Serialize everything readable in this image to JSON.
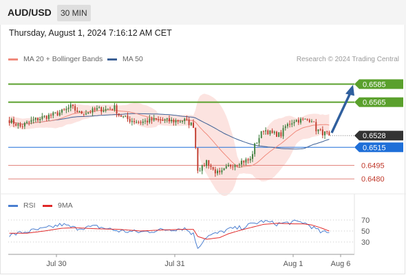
{
  "header": {
    "pair": "AUD/USD",
    "timeframe": "30 MIN"
  },
  "datetime": "Thursday, August 1, 2024 7:16:12 AM CET",
  "legend": {
    "ma20_label": "MA 20 + Bollinger Bands",
    "ma50_label": "MA 50",
    "rsi_label": "RSI",
    "rsi_ma_label": "9MA",
    "research": "Research © 2024 Trading Central"
  },
  "colors": {
    "bullish": "#3a7d3a",
    "bearish": "#c0392b",
    "ma20": "#f08a7c",
    "bollinger_fill": "#fbdedb",
    "ma50": "#3b5f95",
    "resistance": "#5aa02c",
    "support": "#e2847d",
    "pivot": "#1f6fd8",
    "arrow": "#2f5f9e",
    "current": "#333333",
    "rsi": "#4a7ed0",
    "rsi_ma": "#e02828"
  },
  "chart_data": [
    {
      "type": "candlestick",
      "ylim": [
        0.6468,
        0.6602
      ],
      "x_ticks": [
        "Jul 30",
        "Jul 31",
        "Aug 1",
        "Aug 6"
      ],
      "ma_series": [
        {
          "name": "MA 20 + Bollinger Bands"
        },
        {
          "name": "MA 50"
        }
      ],
      "price_levels": [
        {
          "value": 0.6585,
          "label": "0.6585",
          "role": "resistance"
        },
        {
          "value": 0.6565,
          "label": "0.6565",
          "role": "resistance"
        },
        {
          "value": 0.6528,
          "label": "0.6528",
          "role": "current"
        },
        {
          "value": 0.6515,
          "label": "0.6515",
          "role": "pivot"
        },
        {
          "value": 0.6495,
          "label": "0.6495",
          "role": "support"
        },
        {
          "value": 0.648,
          "label": "0.6480",
          "role": "support"
        }
      ],
      "forecast_target": 0.6585,
      "close_path": [
        [
          0,
          0.6545
        ],
        [
          5,
          0.6538
        ],
        [
          10,
          0.6544
        ],
        [
          15,
          0.6548
        ],
        [
          20,
          0.6551
        ],
        [
          25,
          0.6555
        ],
        [
          28,
          0.656
        ],
        [
          32,
          0.6553
        ],
        [
          36,
          0.6554
        ],
        [
          40,
          0.6557
        ],
        [
          44,
          0.6557
        ],
        [
          48,
          0.6559
        ],
        [
          50,
          0.6551
        ],
        [
          55,
          0.6545
        ],
        [
          60,
          0.6543
        ],
        [
          65,
          0.6545
        ],
        [
          70,
          0.6545
        ],
        [
          75,
          0.6544
        ],
        [
          80,
          0.6545
        ],
        [
          84,
          0.6539
        ],
        [
          86,
          0.6491
        ],
        [
          88,
          0.6492
        ],
        [
          90,
          0.65
        ],
        [
          93,
          0.649
        ],
        [
          96,
          0.6485
        ],
        [
          100,
          0.6494
        ],
        [
          105,
          0.6499
        ],
        [
          110,
          0.6501
        ],
        [
          112,
          0.6517
        ],
        [
          116,
          0.6535
        ],
        [
          120,
          0.653
        ],
        [
          124,
          0.6529
        ],
        [
          126,
          0.6538
        ],
        [
          130,
          0.6545
        ],
        [
          134,
          0.6545
        ],
        [
          138,
          0.6546
        ],
        [
          140,
          0.6535
        ],
        [
          143,
          0.6531
        ],
        [
          146,
          0.6529
        ]
      ]
    },
    {
      "type": "line",
      "title": "RSI",
      "ylim": [
        10,
        80
      ],
      "y_ticks": [
        70,
        50,
        30
      ],
      "series": [
        {
          "name": "RSI",
          "values": [
            [
              0,
              42
            ],
            [
              8,
              49
            ],
            [
              16,
              54
            ],
            [
              24,
              62
            ],
            [
              30,
              55
            ],
            [
              40,
              58
            ],
            [
              50,
              50
            ],
            [
              60,
              48
            ],
            [
              70,
              52
            ],
            [
              80,
              55
            ],
            [
              84,
              44
            ],
            [
              86,
              20
            ],
            [
              90,
              40
            ],
            [
              96,
              47
            ],
            [
              100,
              53
            ],
            [
              106,
              56
            ],
            [
              112,
              64
            ],
            [
              116,
              68
            ],
            [
              122,
              63
            ],
            [
              130,
              66
            ],
            [
              134,
              66
            ],
            [
              138,
              58
            ],
            [
              142,
              48
            ],
            [
              146,
              46
            ]
          ]
        },
        {
          "name": "9MA",
          "values": [
            [
              0,
              46
            ],
            [
              8,
              46
            ],
            [
              16,
              50
            ],
            [
              24,
              55
            ],
            [
              30,
              56
            ],
            [
              40,
              54
            ],
            [
              50,
              53
            ],
            [
              60,
              50
            ],
            [
              70,
              52
            ],
            [
              80,
              53
            ],
            [
              84,
              53
            ],
            [
              86,
              40
            ],
            [
              90,
              35
            ],
            [
              96,
              38
            ],
            [
              100,
              45
            ],
            [
              106,
              52
            ],
            [
              112,
              58
            ],
            [
              116,
              62
            ],
            [
              122,
              64
            ],
            [
              130,
              63
            ],
            [
              134,
              63
            ],
            [
              138,
              61
            ],
            [
              142,
              56
            ],
            [
              146,
              50
            ]
          ]
        }
      ]
    }
  ]
}
